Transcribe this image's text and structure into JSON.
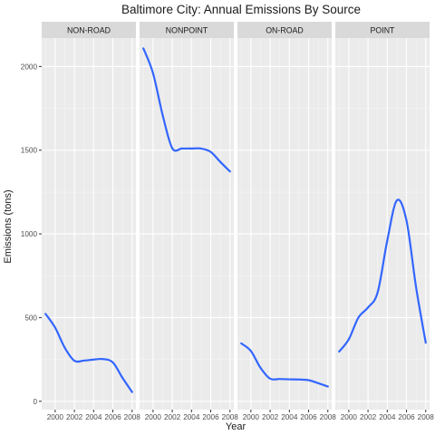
{
  "chart_data": {
    "type": "line",
    "title": "Baltimore City: Annual Emissions By Source",
    "xlabel": "Year",
    "ylabel": "Emissions (tons)",
    "x_ticks": [
      2000,
      2002,
      2004,
      2006,
      2008
    ],
    "x_tick_labels": [
      "2000",
      "2002",
      "2004",
      "2006",
      "2008"
    ],
    "xlim": [
      1998.6,
      2008.4
    ],
    "y_ticks": [
      0,
      500,
      1000,
      1500,
      2000
    ],
    "y_tick_labels": [
      "0",
      "500",
      "1000",
      "1500",
      "2000"
    ],
    "ylim": [
      -50,
      2170
    ],
    "grid": true,
    "facets": [
      {
        "label": "NON-ROAD",
        "points": [
          [
            1999,
            522
          ],
          [
            2000,
            440
          ],
          [
            2001,
            320
          ],
          [
            2002,
            242
          ],
          [
            2003,
            243
          ],
          [
            2004,
            249
          ],
          [
            2005,
            252
          ],
          [
            2006,
            232
          ],
          [
            2007,
            140
          ],
          [
            2008,
            55
          ]
        ]
      },
      {
        "label": "NONPOINT",
        "points": [
          [
            1999,
            2108
          ],
          [
            2000,
            1960
          ],
          [
            2001,
            1710
          ],
          [
            2002,
            1512
          ],
          [
            2003,
            1510
          ],
          [
            2004,
            1510
          ],
          [
            2005,
            1510
          ],
          [
            2006,
            1490
          ],
          [
            2007,
            1430
          ],
          [
            2008,
            1373
          ]
        ]
      },
      {
        "label": "ON-ROAD",
        "points": [
          [
            1999,
            346
          ],
          [
            2000,
            300
          ],
          [
            2001,
            200
          ],
          [
            2002,
            135
          ],
          [
            2003,
            133
          ],
          [
            2004,
            131
          ],
          [
            2005,
            130
          ],
          [
            2006,
            126
          ],
          [
            2007,
            108
          ],
          [
            2008,
            88
          ]
        ]
      },
      {
        "label": "POINT",
        "points": [
          [
            1999,
            297
          ],
          [
            2000,
            370
          ],
          [
            2001,
            500
          ],
          [
            2002,
            560
          ],
          [
            2003,
            650
          ],
          [
            2004,
            960
          ],
          [
            2005,
            1200
          ],
          [
            2006,
            1080
          ],
          [
            2007,
            680
          ],
          [
            2008,
            350
          ]
        ]
      }
    ],
    "colors": {
      "line": "#3366FF",
      "panel": "#EBEBEB",
      "grid_major": "#FFFFFF",
      "grid_minor": "#F5F5F5",
      "strip": "#D9D9D9",
      "text": "#1A1A1A",
      "tick_text": "#4D4D4D"
    }
  }
}
